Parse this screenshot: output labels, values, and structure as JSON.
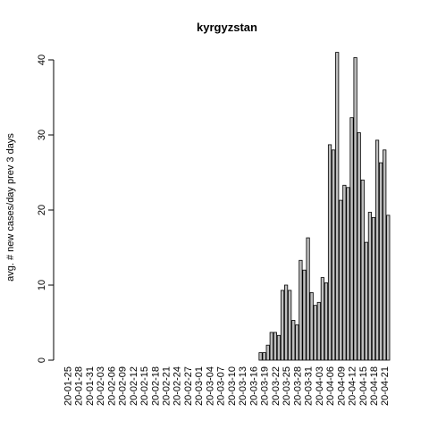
{
  "chart_data": {
    "type": "bar",
    "title": "kyrgyzstan",
    "y_label": "avg. # new cases/day prev  3  days",
    "categories": [
      "20-01-25",
      null,
      null,
      "20-01-28",
      null,
      null,
      "20-01-31",
      null,
      null,
      "20-02-03",
      null,
      null,
      "20-02-06",
      null,
      null,
      "20-02-09",
      null,
      null,
      "20-02-12",
      null,
      null,
      "20-02-15",
      null,
      null,
      "20-02-18",
      null,
      null,
      "20-02-21",
      null,
      null,
      "20-02-24",
      null,
      null,
      "20-02-27",
      null,
      null,
      "20-03-01",
      null,
      null,
      "20-03-04",
      null,
      null,
      "20-03-07",
      null,
      null,
      "20-03-10",
      null,
      null,
      "20-03-13",
      null,
      null,
      "20-03-16",
      null,
      null,
      "20-03-19",
      null,
      null,
      "20-03-22",
      null,
      null,
      "20-03-25",
      null,
      null,
      "20-03-28",
      null,
      null,
      "20-03-31",
      null,
      null,
      "20-04-03",
      null,
      null,
      "20-04-06",
      null,
      null,
      "20-04-09",
      null,
      null,
      "20-04-12",
      null,
      null,
      "20-04-15",
      null,
      null,
      "20-04-18",
      null,
      null,
      "20-04-21",
      null
    ],
    "values": [
      0,
      0,
      0,
      0,
      0,
      0,
      0,
      0,
      0,
      0,
      0,
      0,
      0,
      0,
      0,
      0,
      0,
      0,
      0,
      0,
      0,
      0,
      0,
      0,
      0,
      0,
      0,
      0,
      0,
      0,
      0,
      0,
      0,
      0,
      0,
      0,
      0,
      0,
      0,
      0,
      0,
      0,
      0,
      0,
      0,
      0,
      0,
      0,
      0,
      0,
      0,
      0,
      0,
      1,
      1,
      2,
      3.7,
      3.7,
      3.3,
      9.3,
      10,
      9.3,
      5.3,
      4.7,
      13.3,
      12,
      16.3,
      9,
      7.3,
      7.7,
      11,
      10.3,
      28.7,
      28,
      41,
      21.3,
      23.3,
      23,
      32.3,
      40.3,
      30.3,
      24,
      15.7,
      19.7,
      19,
      29.3,
      26.3,
      28,
      19.3
    ],
    "color": "#bebebe",
    "ylim": [
      0,
      41
    ],
    "yticks": [
      0,
      10,
      20,
      30,
      40
    ]
  }
}
